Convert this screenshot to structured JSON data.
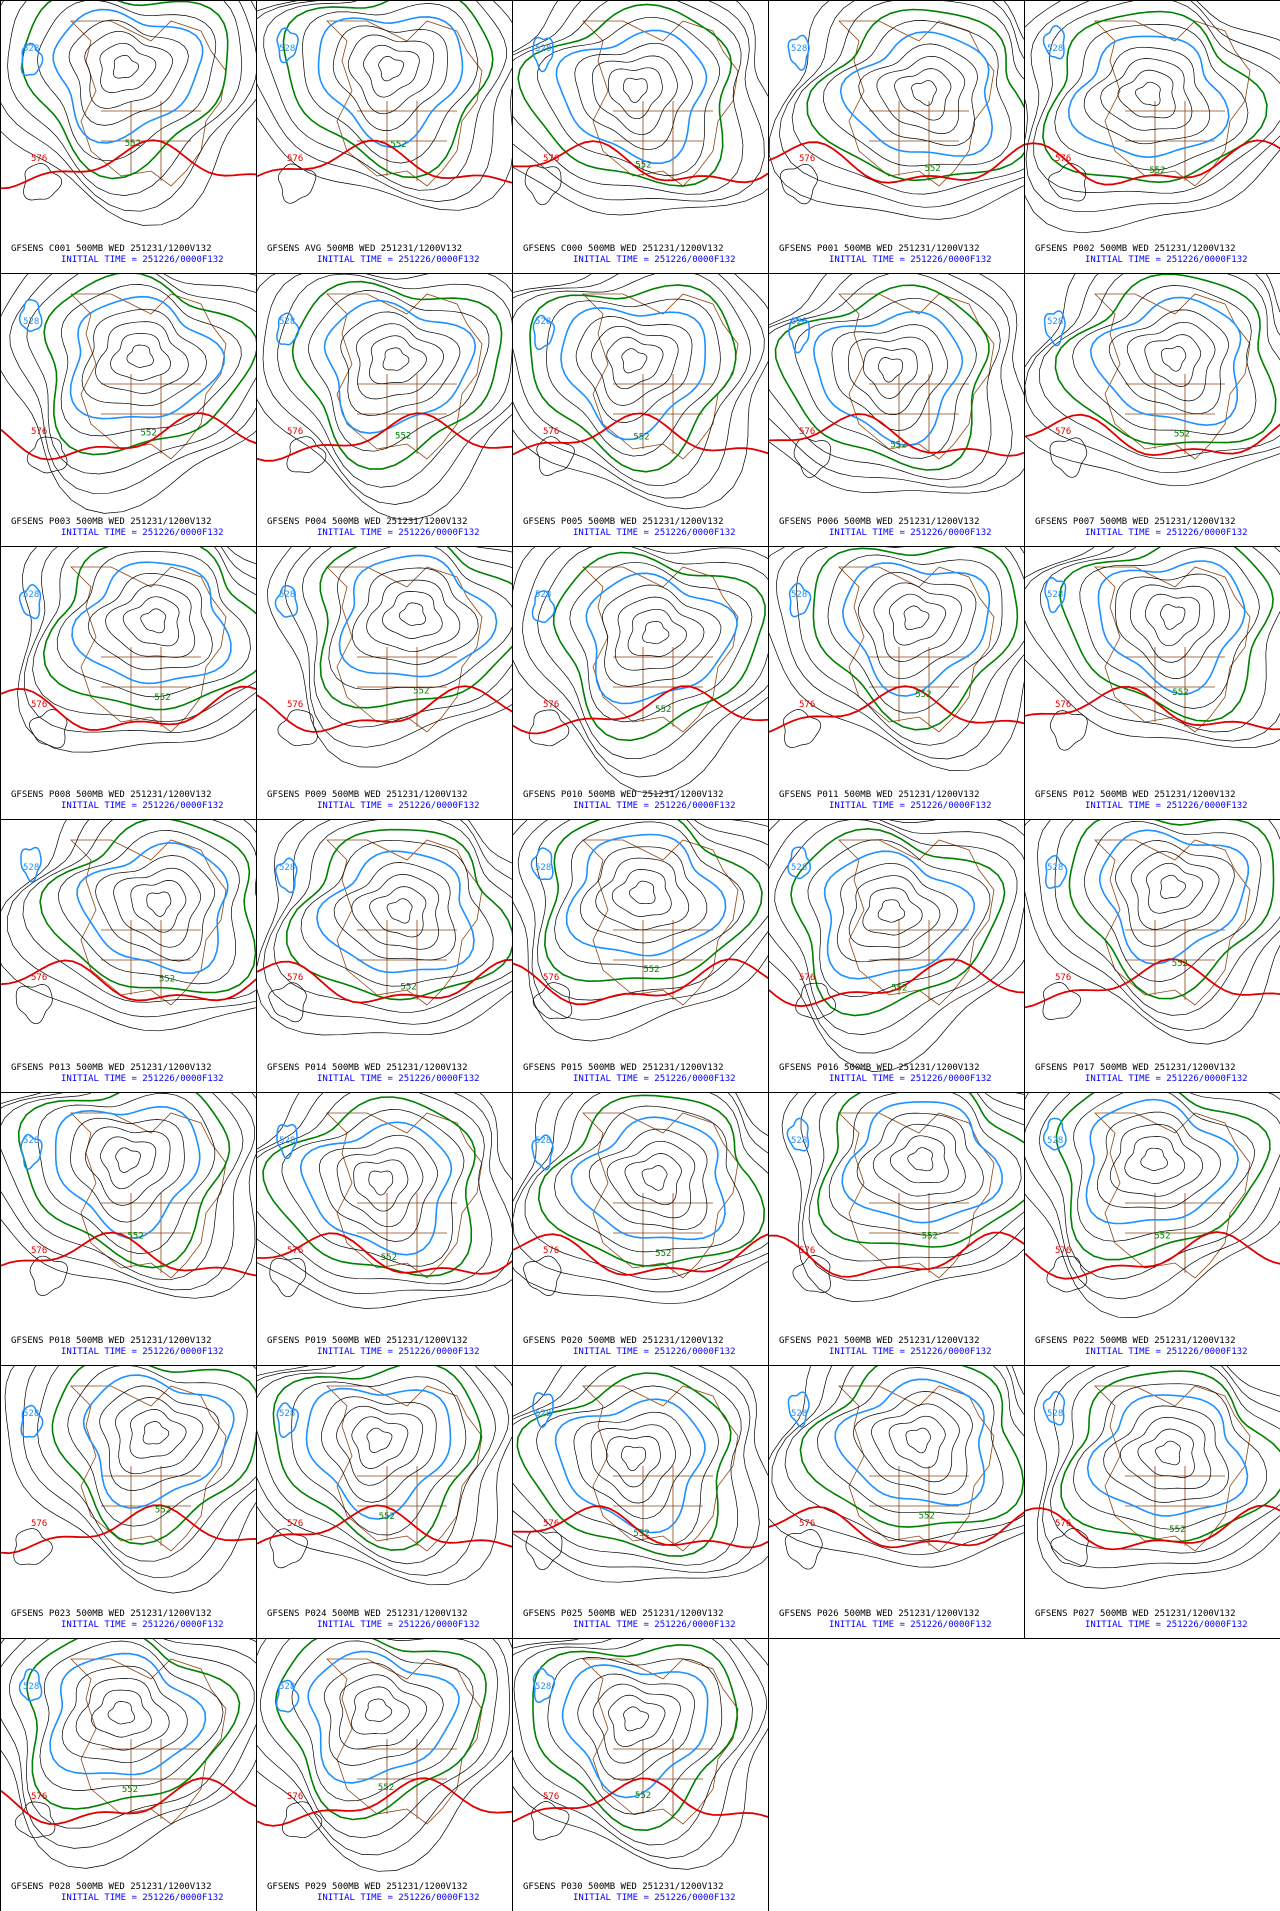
{
  "panels": [
    {
      "title": "GFSENS C001 500MB WED 251231/1200V132",
      "init": "INITIAL TIME = 251226/0000F132"
    },
    {
      "title": "GFSENS AVG 500MB WED 251231/1200V132",
      "init": "INITIAL TIME = 251226/0000F132"
    },
    {
      "title": "GFSENS C000 500MB WED 251231/1200V132",
      "init": "INITIAL TIME = 251226/0000F132"
    },
    {
      "title": "GFSENS P001 500MB WED 251231/1200V132",
      "init": "INITIAL TIME = 251226/0000F132"
    },
    {
      "title": "GFSENS P002 500MB WED 251231/1200V132",
      "init": "INITIAL TIME = 251226/0000F132"
    },
    {
      "title": "GFSENS P003 500MB WED 251231/1200V132",
      "init": "INITIAL TIME = 251226/0000F132"
    },
    {
      "title": "GFSENS P004 500MB WED 251231/1200V132",
      "init": "INITIAL TIME = 251226/0000F132"
    },
    {
      "title": "GFSENS P005 500MB WED 251231/1200V132",
      "init": "INITIAL TIME = 251226/0000F132"
    },
    {
      "title": "GFSENS P006 500MB WED 251231/1200V132",
      "init": "INITIAL TIME = 251226/0000F132"
    },
    {
      "title": "GFSENS P007 500MB WED 251231/1200V132",
      "init": "INITIAL TIME = 251226/0000F132"
    },
    {
      "title": "GFSENS P008 500MB WED 251231/1200V132",
      "init": "INITIAL TIME = 251226/0000F132"
    },
    {
      "title": "GFSENS P009 500MB WED 251231/1200V132",
      "init": "INITIAL TIME = 251226/0000F132"
    },
    {
      "title": "GFSENS P010 500MB WED 251231/1200V132",
      "init": "INITIAL TIME = 251226/0000F132"
    },
    {
      "title": "GFSENS P011 500MB WED 251231/1200V132",
      "init": "INITIAL TIME = 251226/0000F132"
    },
    {
      "title": "GFSENS P012 500MB WED 251231/1200V132",
      "init": "INITIAL TIME = 251226/0000F132"
    },
    {
      "title": "GFSENS P013 500MB WED 251231/1200V132",
      "init": "INITIAL TIME = 251226/0000F132"
    },
    {
      "title": "GFSENS P014 500MB WED 251231/1200V132",
      "init": "INITIAL TIME = 251226/0000F132"
    },
    {
      "title": "GFSENS P015 500MB WED 251231/1200V132",
      "init": "INITIAL TIME = 251226/0000F132"
    },
    {
      "title": "GFSENS P016 500MB WED 251231/1200V132",
      "init": "INITIAL TIME = 251226/0000F132"
    },
    {
      "title": "GFSENS P017 500MB WED 251231/1200V132",
      "init": "INITIAL TIME = 251226/0000F132"
    },
    {
      "title": "GFSENS P018 500MB WED 251231/1200V132",
      "init": "INITIAL TIME = 251226/0000F132"
    },
    {
      "title": "GFSENS P019 500MB WED 251231/1200V132",
      "init": "INITIAL TIME = 251226/0000F132"
    },
    {
      "title": "GFSENS P020 500MB WED 251231/1200V132",
      "init": "INITIAL TIME = 251226/0000F132"
    },
    {
      "title": "GFSENS P021 500MB WED 251231/1200V132",
      "init": "INITIAL TIME = 251226/0000F132"
    },
    {
      "title": "GFSENS P022 500MB WED 251231/1200V132",
      "init": "INITIAL TIME = 251226/0000F132"
    },
    {
      "title": "GFSENS P023 500MB WED 251231/1200V132",
      "init": "INITIAL TIME = 251226/0000F132"
    },
    {
      "title": "GFSENS P024 500MB WED 251231/1200V132",
      "init": "INITIAL TIME = 251226/0000F132"
    },
    {
      "title": "GFSENS P025 500MB WED 251231/1200V132",
      "init": "INITIAL TIME = 251226/0000F132"
    },
    {
      "title": "GFSENS P026 500MB WED 251231/1200V132",
      "init": "INITIAL TIME = 251226/0000F132"
    },
    {
      "title": "GFSENS P027 500MB WED 251231/1200V132",
      "init": "INITIAL TIME = 251226/0000F132"
    },
    {
      "title": "GFSENS P028 500MB WED 251231/1200V132",
      "init": "INITIAL TIME = 251226/0000F132"
    },
    {
      "title": "GFSENS P029 500MB WED 251231/1200V132",
      "init": "INITIAL TIME = 251226/0000F132"
    },
    {
      "title": "GFSENS P030 500MB WED 251231/1200V132",
      "init": "INITIAL TIME = 251226/0000F132"
    }
  ],
  "contour_labels": {
    "red": "576",
    "green": "552",
    "blue": "528"
  }
}
